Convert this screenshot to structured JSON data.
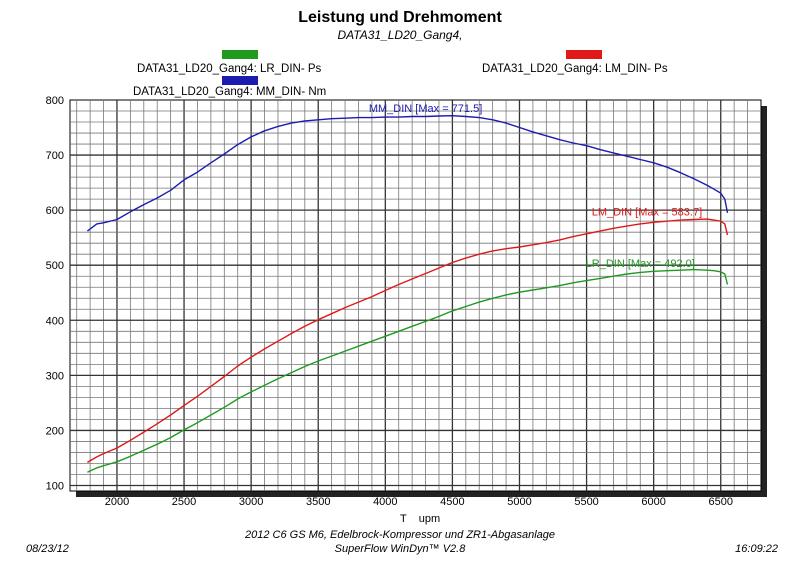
{
  "title": "Leistung und Drehmoment",
  "subtitle": "DATA31_LD20_Gang4,",
  "legend": [
    {
      "label": "DATA31_LD20_Gang4: LR_DIN-  Ps",
      "color": "#1f9a1f"
    },
    {
      "label": "DATA31_LD20_Gang4: LM_DIN-  Ps",
      "color": "#e01818"
    },
    {
      "label": "DATA31_LD20_Gang4: MM_DIN-  Nm",
      "color": "#1c1cb0"
    }
  ],
  "footer": {
    "line1": "2012 C6 GS M6, Edelbrock-Kompressor und ZR1-Abgasanlage",
    "line2": "SuperFlow WinDyn™ V2.8",
    "date": "08/23/12",
    "time": "16:09:22"
  },
  "chart_data": {
    "type": "line",
    "xlabel": "T    upm",
    "ylabel": "",
    "xlim": [
      1650,
      6800
    ],
    "ylim": [
      90,
      800
    ],
    "xticks": [
      2000,
      2500,
      3000,
      3500,
      4000,
      4500,
      5000,
      5500,
      6000,
      6500
    ],
    "yticks": [
      100,
      200,
      300,
      400,
      500,
      600,
      700,
      800
    ],
    "grid": true,
    "series": [
      {
        "name": "MM_DIN",
        "color": "#1c1cb0",
        "annotation": "MM_DIN [Max = 771.5]",
        "x": [
          1780,
          1850,
          1900,
          2000,
          2100,
          2200,
          2300,
          2400,
          2500,
          2600,
          2700,
          2800,
          2900,
          3000,
          3100,
          3200,
          3300,
          3400,
          3500,
          3600,
          3700,
          3800,
          3900,
          4000,
          4100,
          4200,
          4300,
          4400,
          4500,
          4600,
          4700,
          4800,
          4900,
          5000,
          5100,
          5200,
          5300,
          5400,
          5500,
          5600,
          5700,
          5800,
          5900,
          6000,
          6100,
          6200,
          6300,
          6400,
          6450,
          6500,
          6530,
          6550
        ],
        "y": [
          562,
          575,
          577,
          583,
          597,
          610,
          622,
          636,
          655,
          669,
          686,
          702,
          719,
          733,
          744,
          752,
          758,
          762,
          764,
          766,
          767,
          768,
          768,
          769,
          769,
          770,
          770,
          771,
          771.5,
          770,
          768,
          764,
          758,
          750,
          742,
          735,
          728,
          722,
          717,
          710,
          704,
          698,
          692,
          686,
          678,
          668,
          657,
          645,
          638,
          631,
          620,
          595
        ]
      },
      {
        "name": "LM_DIN",
        "color": "#e01818",
        "annotation": "LM_DIN [Max = 583.7]",
        "x": [
          1780,
          1850,
          1900,
          2000,
          2100,
          2200,
          2300,
          2400,
          2500,
          2600,
          2700,
          2800,
          2900,
          3000,
          3100,
          3200,
          3300,
          3400,
          3500,
          3600,
          3700,
          3800,
          3900,
          4000,
          4100,
          4200,
          4300,
          4400,
          4500,
          4600,
          4700,
          4800,
          4900,
          5000,
          5100,
          5200,
          5300,
          5400,
          5500,
          5600,
          5700,
          5800,
          5900,
          6000,
          6100,
          6200,
          6300,
          6400,
          6450,
          6500,
          6530,
          6550
        ],
        "y": [
          142,
          152,
          158,
          168,
          182,
          197,
          212,
          228,
          245,
          262,
          280,
          298,
          317,
          333,
          348,
          362,
          376,
          389,
          401,
          412,
          423,
          433,
          443,
          454,
          465,
          475,
          485,
          495,
          505,
          513,
          520,
          526,
          530,
          533,
          537,
          541,
          546,
          552,
          557,
          562,
          567,
          571,
          575,
          578,
          580,
          582,
          583,
          583.7,
          582,
          580,
          575,
          555
        ]
      },
      {
        "name": "LR_DIN",
        "color": "#1f9a1f",
        "annotation": "LR_DIN [Max = 492.0]",
        "x": [
          1780,
          1850,
          1900,
          2000,
          2100,
          2200,
          2300,
          2400,
          2500,
          2600,
          2700,
          2800,
          2900,
          3000,
          3100,
          3200,
          3300,
          3400,
          3500,
          3600,
          3700,
          3800,
          3900,
          4000,
          4100,
          4200,
          4300,
          4400,
          4500,
          4600,
          4700,
          4800,
          4900,
          5000,
          5100,
          5200,
          5300,
          5400,
          5500,
          5600,
          5700,
          5800,
          5900,
          6000,
          6100,
          6200,
          6300,
          6400,
          6450,
          6500,
          6530,
          6550
        ],
        "y": [
          124,
          132,
          136,
          143,
          153,
          164,
          175,
          187,
          201,
          214,
          228,
          242,
          257,
          270,
          282,
          294,
          305,
          316,
          326,
          335,
          344,
          353,
          362,
          371,
          380,
          389,
          398,
          407,
          417,
          425,
          433,
          440,
          446,
          451,
          455,
          459,
          463,
          468,
          472,
          476,
          480,
          484,
          487,
          489,
          490,
          491,
          492,
          491,
          490,
          488,
          484,
          465
        ]
      }
    ]
  }
}
